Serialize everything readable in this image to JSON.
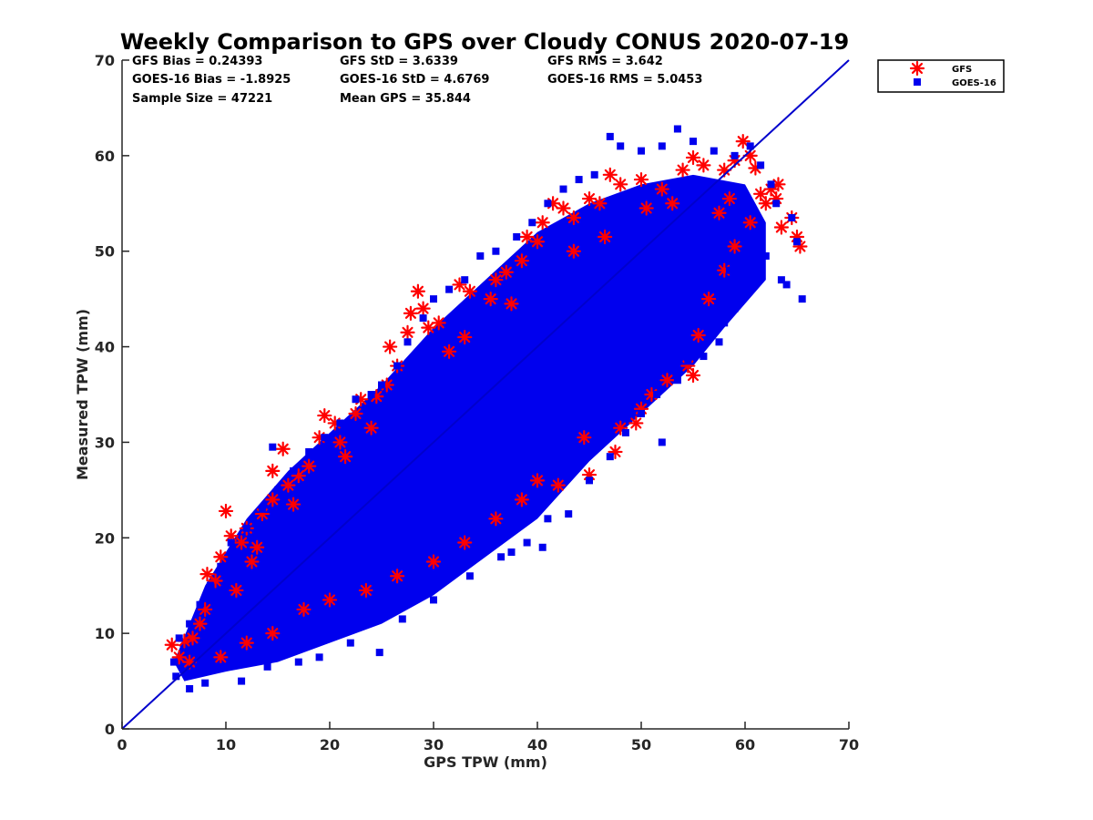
{
  "chart_data": {
    "type": "scatter",
    "title": "Weekly Comparison to GPS over Cloudy CONUS 2020-07-19",
    "xlabel": "GPS TPW (mm)",
    "ylabel": "Measured TPW (mm)",
    "xlim": [
      0,
      70
    ],
    "ylim": [
      0,
      70
    ],
    "xticks": [
      "0",
      "10",
      "20",
      "30",
      "40",
      "50",
      "60",
      "70"
    ],
    "yticks": [
      "0",
      "10",
      "20",
      "30",
      "40",
      "50",
      "60",
      "70"
    ],
    "grid": false,
    "legend_position": "outside top-right",
    "stats": [
      [
        "GFS Bias = 0.24393",
        "GFS StD = 3.6339",
        "GFS RMS = 3.642"
      ],
      [
        "GOES-16 Bias = -1.8925",
        "GOES-16 StD = 4.6769",
        "GOES-16 RMS = 5.0453"
      ],
      [
        "Sample Size = 47221",
        "Mean GPS = 35.844",
        ""
      ]
    ],
    "reference_line": {
      "x": [
        0,
        70
      ],
      "y": [
        0,
        70
      ],
      "color": "#0000cc"
    },
    "series": [
      {
        "name": "GFS",
        "marker": "asterisk",
        "color": "#ff0000",
        "points": [
          [
            4.8,
            8.8
          ],
          [
            5.5,
            7.5
          ],
          [
            6.0,
            9.2
          ],
          [
            6.8,
            9.5
          ],
          [
            7.5,
            11.0
          ],
          [
            8.0,
            12.5
          ],
          [
            8.2,
            16.2
          ],
          [
            9.0,
            15.5
          ],
          [
            9.5,
            18.0
          ],
          [
            10.0,
            22.8
          ],
          [
            10.5,
            20.2
          ],
          [
            11.5,
            19.5
          ],
          [
            12.0,
            21.0
          ],
          [
            12.5,
            17.5
          ],
          [
            13.5,
            22.5
          ],
          [
            14.5,
            24.0
          ],
          [
            14.5,
            27.0
          ],
          [
            15.5,
            29.3
          ],
          [
            16.0,
            25.5
          ],
          [
            17.0,
            26.5
          ],
          [
            18.0,
            27.5
          ],
          [
            19.0,
            30.5
          ],
          [
            19.5,
            32.8
          ],
          [
            20.5,
            32.0
          ],
          [
            21.0,
            30.0
          ],
          [
            22.5,
            33.0
          ],
          [
            23.0,
            34.5
          ],
          [
            24.5,
            34.8
          ],
          [
            25.5,
            36.0
          ],
          [
            25.8,
            40.0
          ],
          [
            26.5,
            38.0
          ],
          [
            27.5,
            41.5
          ],
          [
            27.8,
            43.5
          ],
          [
            28.5,
            45.8
          ],
          [
            29.0,
            44.0
          ],
          [
            29.5,
            42.0
          ],
          [
            30.5,
            42.5
          ],
          [
            32.5,
            46.5
          ],
          [
            33.5,
            45.8
          ],
          [
            35.5,
            45.0
          ],
          [
            36.0,
            47.0
          ],
          [
            37.0,
            47.8
          ],
          [
            38.5,
            49.0
          ],
          [
            39.0,
            51.5
          ],
          [
            40.0,
            51.0
          ],
          [
            40.5,
            53.0
          ],
          [
            41.5,
            55.0
          ],
          [
            42.5,
            54.5
          ],
          [
            43.5,
            53.5
          ],
          [
            45.0,
            55.5
          ],
          [
            46.0,
            55.0
          ],
          [
            47.0,
            58.0
          ],
          [
            48.0,
            57.0
          ],
          [
            50.0,
            57.5
          ],
          [
            52.0,
            56.5
          ],
          [
            54.0,
            58.5
          ],
          [
            55.0,
            59.8
          ],
          [
            56.0,
            59.0
          ],
          [
            58.0,
            58.5
          ],
          [
            59.0,
            59.5
          ],
          [
            59.8,
            61.5
          ],
          [
            60.5,
            60.0
          ],
          [
            61.0,
            58.7
          ],
          [
            61.5,
            56.0
          ],
          [
            62.5,
            56.5
          ],
          [
            63.0,
            55.5
          ],
          [
            63.2,
            57.0
          ],
          [
            62.0,
            55.0
          ],
          [
            63.5,
            52.5
          ],
          [
            64.5,
            53.5
          ],
          [
            65.0,
            51.5
          ],
          [
            65.3,
            50.5
          ],
          [
            60.5,
            53.0
          ],
          [
            59.0,
            50.5
          ],
          [
            58.0,
            48.0
          ],
          [
            56.5,
            45.0
          ],
          [
            55.5,
            41.2
          ],
          [
            54.5,
            38.0
          ],
          [
            55.0,
            37.0
          ],
          [
            52.5,
            36.5
          ],
          [
            51.0,
            35.0
          ],
          [
            50.0,
            33.5
          ],
          [
            49.5,
            32.0
          ],
          [
            48.0,
            31.5
          ],
          [
            47.5,
            29.0
          ],
          [
            45.0,
            26.6
          ],
          [
            44.5,
            30.5
          ],
          [
            42.0,
            25.5
          ],
          [
            40.0,
            26.0
          ],
          [
            38.5,
            24.0
          ],
          [
            36.0,
            22.0
          ],
          [
            33.0,
            19.5
          ],
          [
            30.0,
            17.5
          ],
          [
            26.5,
            16.0
          ],
          [
            23.5,
            14.5
          ],
          [
            20.0,
            13.5
          ],
          [
            17.5,
            12.5
          ],
          [
            14.5,
            10.0
          ],
          [
            12.0,
            9.0
          ],
          [
            9.5,
            7.5
          ],
          [
            6.5,
            7.0
          ],
          [
            11.0,
            14.5
          ],
          [
            13.0,
            19.0
          ],
          [
            16.5,
            23.5
          ],
          [
            21.5,
            28.5
          ],
          [
            24.0,
            31.5
          ],
          [
            31.5,
            39.5
          ],
          [
            33.0,
            41.0
          ],
          [
            37.5,
            44.5
          ],
          [
            43.5,
            50.0
          ],
          [
            46.5,
            51.5
          ],
          [
            50.5,
            54.5
          ],
          [
            53.0,
            55.0
          ],
          [
            57.5,
            54.0
          ],
          [
            58.5,
            55.5
          ]
        ]
      },
      {
        "name": "GOES-16",
        "marker": "square",
        "color": "#0000ee",
        "points": [
          [
            6.5,
            4.2
          ],
          [
            8.0,
            4.8
          ],
          [
            5.2,
            5.5
          ],
          [
            11.5,
            5.0
          ],
          [
            14.0,
            6.5
          ],
          [
            17.0,
            7.0
          ],
          [
            19.0,
            7.5
          ],
          [
            24.8,
            8.0
          ],
          [
            22.0,
            9.0
          ],
          [
            27.0,
            11.5
          ],
          [
            30.0,
            13.5
          ],
          [
            33.5,
            16.0
          ],
          [
            36.5,
            18.0
          ],
          [
            37.5,
            18.5
          ],
          [
            39.0,
            19.5
          ],
          [
            40.5,
            19.0
          ],
          [
            41.0,
            22.0
          ],
          [
            43.0,
            22.5
          ],
          [
            45.0,
            26.0
          ],
          [
            47.0,
            28.5
          ],
          [
            48.5,
            31.0
          ],
          [
            50.0,
            33.0
          ],
          [
            52.0,
            30.0
          ],
          [
            51.5,
            35.0
          ],
          [
            53.5,
            36.5
          ],
          [
            54.5,
            38.5
          ],
          [
            56.0,
            39.0
          ],
          [
            57.5,
            40.5
          ],
          [
            58.0,
            42.5
          ],
          [
            59.0,
            44.0
          ],
          [
            60.5,
            46.0
          ],
          [
            61.0,
            48.0
          ],
          [
            62.0,
            49.5
          ],
          [
            63.5,
            47.0
          ],
          [
            64.0,
            46.5
          ],
          [
            65.5,
            45.0
          ],
          [
            65.0,
            51.0
          ],
          [
            64.5,
            53.5
          ],
          [
            63.0,
            55.0
          ],
          [
            62.5,
            57.0
          ],
          [
            61.5,
            59.0
          ],
          [
            60.5,
            61.0
          ],
          [
            59.0,
            60.0
          ],
          [
            57.0,
            60.5
          ],
          [
            55.0,
            61.5
          ],
          [
            53.5,
            62.8
          ],
          [
            52.0,
            61.0
          ],
          [
            50.0,
            60.5
          ],
          [
            48.0,
            61.0
          ],
          [
            47.0,
            62.0
          ],
          [
            45.5,
            58.0
          ],
          [
            44.0,
            57.5
          ],
          [
            42.5,
            56.5
          ],
          [
            41.0,
            55.0
          ],
          [
            39.5,
            53.0
          ],
          [
            38.0,
            51.5
          ],
          [
            36.0,
            50.0
          ],
          [
            34.5,
            49.5
          ],
          [
            33.0,
            47.0
          ],
          [
            31.5,
            46.0
          ],
          [
            30.0,
            45.0
          ],
          [
            29.0,
            43.0
          ],
          [
            27.5,
            40.5
          ],
          [
            26.5,
            38.0
          ],
          [
            25.0,
            36.0
          ],
          [
            24.0,
            35.0
          ],
          [
            22.5,
            34.5
          ],
          [
            21.0,
            32.0
          ],
          [
            19.5,
            30.5
          ],
          [
            18.0,
            29.0
          ],
          [
            16.5,
            27.0
          ],
          [
            14.5,
            29.5
          ],
          [
            15.0,
            25.0
          ],
          [
            13.5,
            23.0
          ],
          [
            12.0,
            21.0
          ],
          [
            10.5,
            19.5
          ],
          [
            9.5,
            17.0
          ],
          [
            8.5,
            15.0
          ],
          [
            7.5,
            13.0
          ],
          [
            6.5,
            11.0
          ],
          [
            5.5,
            9.5
          ],
          [
            5.0,
            7.0
          ],
          [
            7.0,
            6.0
          ],
          [
            9.5,
            6.5
          ],
          [
            12.5,
            8.0
          ],
          [
            15.5,
            9.0
          ],
          [
            18.5,
            10.5
          ],
          [
            21.5,
            12.0
          ],
          [
            24.5,
            14.5
          ],
          [
            28.0,
            16.5
          ],
          [
            31.0,
            19.0
          ],
          [
            34.0,
            22.0
          ],
          [
            37.0,
            24.5
          ],
          [
            40.0,
            27.5
          ],
          [
            43.0,
            30.5
          ],
          [
            46.0,
            34.0
          ],
          [
            49.0,
            37.5
          ],
          [
            52.5,
            41.0
          ],
          [
            55.5,
            44.5
          ],
          [
            58.5,
            48.0
          ],
          [
            20.0,
            20.0
          ],
          [
            25.0,
            25.0
          ],
          [
            30.0,
            30.0
          ],
          [
            35.0,
            35.0
          ],
          [
            40.0,
            40.0
          ],
          [
            45.0,
            45.0
          ],
          [
            50.0,
            50.0
          ],
          [
            55.0,
            53.0
          ],
          [
            15.0,
            15.0
          ],
          [
            10.0,
            10.0
          ]
        ]
      }
    ]
  }
}
